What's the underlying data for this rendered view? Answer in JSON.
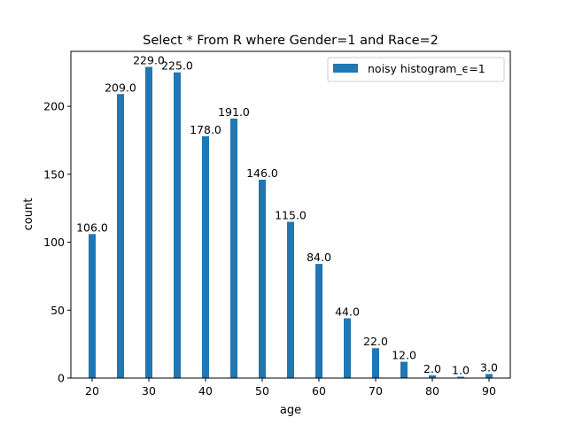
{
  "chart_data": {
    "type": "bar",
    "title": "Select * From R where Gender=1 and Race=2",
    "xlabel": "age",
    "ylabel": "count",
    "x": [
      20,
      25,
      30,
      35,
      40,
      45,
      50,
      55,
      60,
      65,
      70,
      75,
      80,
      85,
      90
    ],
    "series": [
      {
        "name": "noisy histogram_ϵ=1",
        "color": "#1f77b4",
        "values": [
          106.0,
          209.0,
          229.0,
          225.0,
          178.0,
          191.0,
          146.0,
          115.0,
          84.0,
          44.0,
          22.0,
          12.0,
          2.0,
          1.0,
          3.0
        ]
      }
    ],
    "data_labels": [
      "106.0",
      "209.0",
      "229.0",
      "225.0",
      "178.0",
      "191.0",
      "146.0",
      "115.0",
      "84.0",
      "44.0",
      "22.0",
      "12.0",
      "2.0",
      "1.0",
      "3.0"
    ],
    "xticks": [
      20,
      30,
      40,
      50,
      60,
      70,
      80,
      90
    ],
    "yticks": [
      0,
      50,
      100,
      150,
      200
    ],
    "xlim": [
      16.25,
      93.75
    ],
    "ylim": [
      0,
      240.45
    ],
    "grid": false,
    "legend_position": "upper right"
  }
}
